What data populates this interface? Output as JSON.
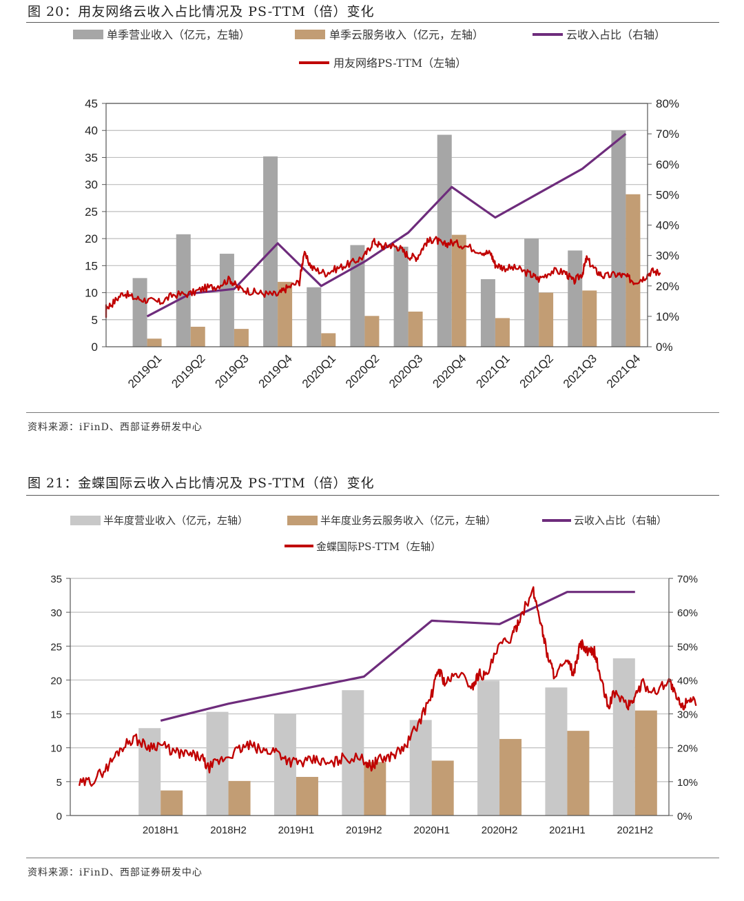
{
  "chart_data": [
    {
      "type": "bar",
      "figure_title": "图 20：用友网络云收入占比情况及 PS-TTM（倍）变化",
      "source": "资料来源：iFinD、西部证券研发中心",
      "categories": [
        "2019Q1",
        "2019Q2",
        "2019Q3",
        "2019Q4",
        "2020Q1",
        "2020Q2",
        "2020Q3",
        "2020Q4",
        "2021Q1",
        "2021Q2",
        "2021Q3",
        "2021Q4"
      ],
      "series": [
        {
          "name": "单季营业收入（亿元，左轴）",
          "kind": "bar",
          "axis": "left",
          "color": "#a6a6a6",
          "values": [
            12.7,
            20.8,
            17.2,
            35.2,
            11.0,
            18.8,
            18.5,
            39.2,
            12.5,
            20.0,
            17.8,
            40.0
          ]
        },
        {
          "name": "单季云服务收入（亿元，左轴）",
          "kind": "bar",
          "axis": "left",
          "color": "#c29d74",
          "values": [
            1.5,
            3.7,
            3.3,
            12.0,
            2.5,
            5.7,
            6.5,
            20.7,
            5.3,
            10.0,
            10.4,
            28.2
          ]
        },
        {
          "name": "云收入占比（右轴）",
          "kind": "line",
          "axis": "right",
          "color": "#6e2c7c",
          "values": [
            0.1,
            0.175,
            0.19,
            0.34,
            0.2,
            0.28,
            0.375,
            0.525,
            0.425,
            0.505,
            0.585,
            0.7
          ]
        },
        {
          "name": "用友网络PS-TTM（左轴）",
          "kind": "line",
          "axis": "left",
          "color": "#c00000",
          "anchors": [
            [
              -1.2,
              5.8
            ],
            [
              -1.0,
              7
            ],
            [
              -0.8,
              8
            ],
            [
              -0.55,
              10
            ],
            [
              -0.3,
              9
            ],
            [
              0,
              8.6
            ],
            [
              0.3,
              8.2
            ],
            [
              0.6,
              9.6
            ],
            [
              1.0,
              9.8
            ],
            [
              1.3,
              10.8
            ],
            [
              1.6,
              11.2
            ],
            [
              1.9,
              12.5
            ],
            [
              2.1,
              10.8
            ],
            [
              2.4,
              10.2
            ],
            [
              2.7,
              9.8
            ],
            [
              3.0,
              9.6
            ],
            [
              3.2,
              10.8
            ],
            [
              3.5,
              12.0
            ],
            [
              3.6,
              17.2
            ],
            [
              3.8,
              14.5
            ],
            [
              4.1,
              13.6
            ],
            [
              4.4,
              14.6
            ],
            [
              4.7,
              15.5
            ],
            [
              5.0,
              16.8
            ],
            [
              5.2,
              19.5
            ],
            [
              5.4,
              18.5
            ],
            [
              5.6,
              18.8
            ],
            [
              5.8,
              18.3
            ],
            [
              6.0,
              16.8
            ],
            [
              6.2,
              16.5
            ],
            [
              6.4,
              19.2
            ],
            [
              6.6,
              20.0
            ],
            [
              6.8,
              18.8
            ],
            [
              7.0,
              19.3
            ],
            [
              7.3,
              18.7
            ],
            [
              7.7,
              17.6
            ],
            [
              7.9,
              17.2
            ],
            [
              8.0,
              15.2
            ],
            [
              8.2,
              14.6
            ],
            [
              8.5,
              14.5
            ],
            [
              8.8,
              13.4
            ],
            [
              9.0,
              12.5
            ],
            [
              9.3,
              14.0
            ],
            [
              9.6,
              13.8
            ],
            [
              9.8,
              12.0
            ],
            [
              10.0,
              13.5
            ],
            [
              10.1,
              16.3
            ],
            [
              10.3,
              14.1
            ],
            [
              10.5,
              13.0
            ],
            [
              10.8,
              13.4
            ],
            [
              11.0,
              13.0
            ],
            [
              11.2,
              12.0
            ],
            [
              11.4,
              12.7
            ],
            [
              11.6,
              14.0
            ],
            [
              11.8,
              13.6
            ]
          ],
          "ylim": [
            0,
            45
          ]
        }
      ],
      "legend": [
        "单季营业收入（亿元，左轴）",
        "单季云服务收入（亿元，左轴）",
        "云收入占比（右轴）",
        "用友网络PS-TTM（左轴）"
      ],
      "ylim": [
        0,
        45
      ],
      "y_ticks": [
        "0",
        "5",
        "10",
        "15",
        "20",
        "25",
        "30",
        "35",
        "40",
        "45"
      ],
      "y2lim": [
        0,
        0.8
      ],
      "y2_ticks": [
        "0%",
        "10%",
        "20%",
        "30%",
        "40%",
        "50%",
        "60%",
        "70%",
        "80%"
      ]
    },
    {
      "type": "bar",
      "figure_title": "图 21：金蝶国际云收入占比情况及 PS-TTM（倍）变化",
      "source": "资料来源：iFinD、西部证券研发中心",
      "categories": [
        "2018H1",
        "2018H2",
        "2019H1",
        "2019H2",
        "2020H1",
        "2020H2",
        "2021H1",
        "2021H2"
      ],
      "series": [
        {
          "name": "半年度营业收入（亿元，左轴）",
          "kind": "bar",
          "axis": "left",
          "color": "#c8c8c8",
          "values": [
            12.9,
            15.3,
            15.0,
            18.5,
            14.1,
            19.9,
            18.9,
            23.2
          ]
        },
        {
          "name": "半年度业务云服务收入（亿元，左轴）",
          "kind": "bar",
          "axis": "left",
          "color": "#c29d74",
          "values": [
            3.7,
            5.1,
            5.7,
            7.9,
            8.1,
            11.3,
            12.5,
            15.5
          ]
        },
        {
          "name": "云收入占比（右轴）",
          "kind": "line",
          "axis": "right",
          "color": "#6e2c7c",
          "values": [
            0.28,
            0.33,
            0.37,
            0.41,
            0.575,
            0.565,
            0.66,
            0.66
          ]
        },
        {
          "name": "金蝶国际PS-TTM（左轴）",
          "kind": "line",
          "axis": "left",
          "color": "#c00000",
          "anchors": [
            [
              -1.2,
              4.6
            ],
            [
              -1.0,
              5.2
            ],
            [
              -0.8,
              7
            ],
            [
              -0.6,
              9.8
            ],
            [
              -0.4,
              11.5
            ],
            [
              -0.2,
              10.2
            ],
            [
              0,
              10.5
            ],
            [
              0.2,
              9.3
            ],
            [
              0.4,
              9.0
            ],
            [
              0.6,
              8.6
            ],
            [
              0.7,
              7.0
            ],
            [
              0.9,
              8.2
            ],
            [
              1.1,
              9.4
            ],
            [
              1.3,
              10.4
            ],
            [
              1.5,
              9.5
            ],
            [
              1.7,
              9.6
            ],
            [
              1.9,
              8.0
            ],
            [
              2.1,
              7.8
            ],
            [
              2.3,
              8.2
            ],
            [
              2.5,
              7.5
            ],
            [
              2.7,
              8.6
            ],
            [
              3.0,
              8.3
            ],
            [
              3.1,
              7.2
            ],
            [
              3.2,
              8.1
            ],
            [
              3.4,
              8.8
            ],
            [
              3.6,
              10.0
            ],
            [
              3.8,
              13.5
            ],
            [
              4.0,
              17.8
            ],
            [
              4.1,
              21.7
            ],
            [
              4.2,
              19.5
            ],
            [
              4.4,
              21.0
            ],
            [
              4.6,
              19.0
            ],
            [
              4.7,
              21.0
            ],
            [
              4.8,
              20.5
            ],
            [
              5.0,
              25.0
            ],
            [
              5.2,
              26.5
            ],
            [
              5.3,
              29.3
            ],
            [
              5.5,
              33.0
            ],
            [
              5.6,
              29.0
            ],
            [
              5.7,
              24.0
            ],
            [
              5.8,
              21.0
            ],
            [
              6.0,
              22.5
            ],
            [
              6.1,
              21.0
            ],
            [
              6.2,
              25.5
            ],
            [
              6.3,
              24.0
            ],
            [
              6.4,
              24.2
            ],
            [
              6.5,
              20.0
            ],
            [
              6.6,
              16.0
            ],
            [
              6.7,
              18.2
            ],
            [
              6.9,
              16.2
            ],
            [
              7.0,
              17.5
            ],
            [
              7.1,
              19.5
            ],
            [
              7.3,
              18.2
            ],
            [
              7.5,
              20.2
            ],
            [
              7.6,
              17.5
            ],
            [
              7.7,
              16.0
            ],
            [
              7.8,
              17.5
            ],
            [
              7.9,
              16.2
            ]
          ],
          "ylim": [
            0,
            35
          ]
        }
      ],
      "legend": [
        "半年度营业收入（亿元，左轴）",
        "半年度业务云服务收入（亿元，左轴）",
        "云收入占比（右轴）",
        "金蝶国际PS-TTM（左轴）"
      ],
      "ylim": [
        0,
        35
      ],
      "y_ticks": [
        "0",
        "5",
        "10",
        "15",
        "20",
        "25",
        "30",
        "35"
      ],
      "y2lim": [
        0,
        0.7
      ],
      "y2_ticks": [
        "0%",
        "10%",
        "20%",
        "30%",
        "40%",
        "50%",
        "60%",
        "70%"
      ]
    }
  ]
}
